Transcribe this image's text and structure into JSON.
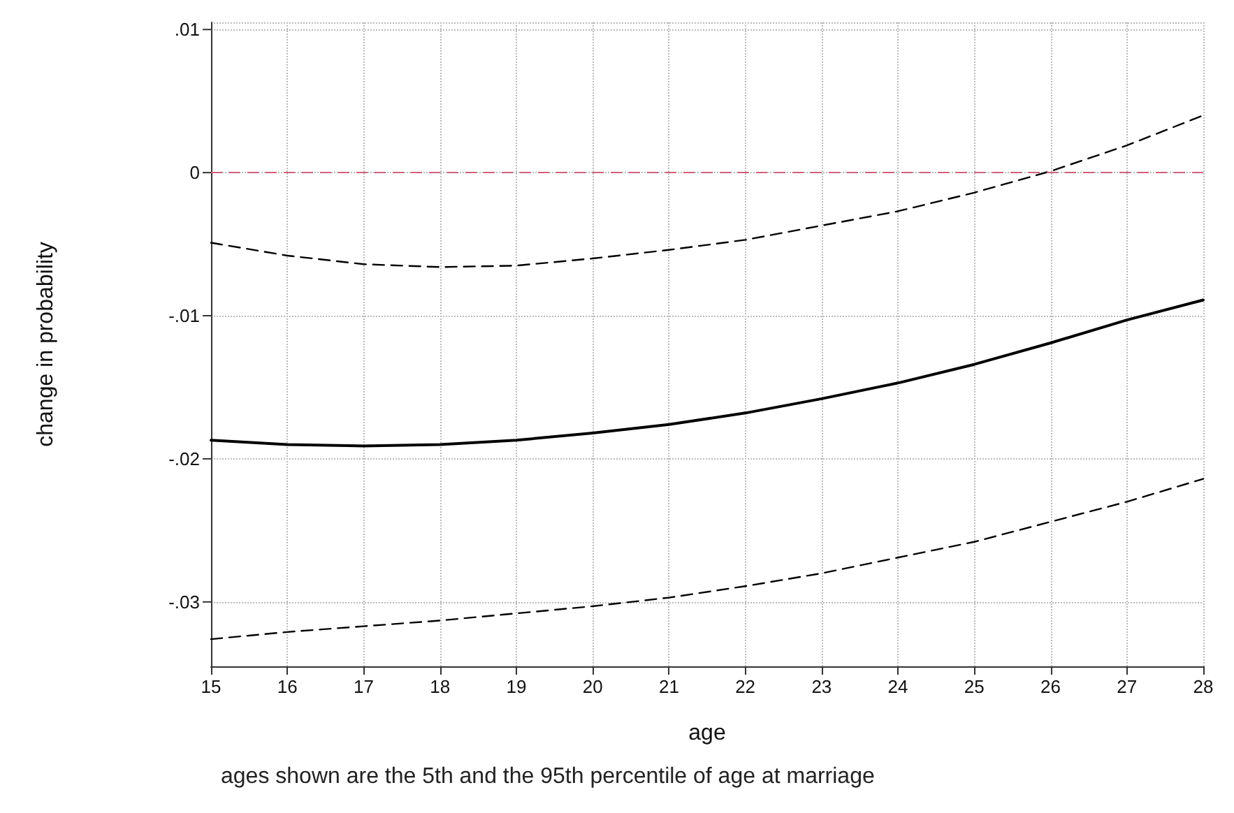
{
  "chart_data": {
    "type": "line",
    "xlabel": "age",
    "ylabel": "change in probability",
    "annotations": [
      "ages shown are the 5th and the 95th percentile of age at marriage"
    ],
    "x": [
      15,
      16,
      17,
      18,
      19,
      20,
      21,
      22,
      23,
      24,
      25,
      26,
      27,
      28
    ],
    "series": [
      {
        "color": "#000000",
        "line_style": "solid",
        "values": [
          -0.0187,
          -0.019,
          -0.0191,
          -0.019,
          -0.0187,
          -0.0182,
          -0.0176,
          -0.0168,
          -0.0158,
          -0.0147,
          -0.0134,
          -0.0119,
          -0.0103,
          -0.0089
        ]
      },
      {
        "color": "#000000",
        "line_style": "dashed",
        "values": [
          -0.0049,
          -0.0058,
          -0.0064,
          -0.0066,
          -0.0065,
          -0.006,
          -0.0054,
          -0.0047,
          -0.0037,
          -0.0027,
          -0.0014,
          0.0001,
          0.0019,
          0.004
        ]
      },
      {
        "color": "#000000",
        "line_style": "dashed",
        "values": [
          -0.0326,
          -0.0321,
          -0.0317,
          -0.0313,
          -0.0308,
          -0.0303,
          -0.0297,
          -0.0289,
          -0.028,
          -0.0269,
          -0.0258,
          -0.0244,
          -0.023,
          -0.0214
        ]
      }
    ],
    "xlim": [
      15,
      28
    ],
    "xticks": [
      15,
      16,
      17,
      18,
      19,
      20,
      21,
      22,
      23,
      24,
      25,
      26,
      27,
      28
    ],
    "ylim": [
      -0.0345,
      0.0105
    ],
    "yticks": [
      {
        "value": -0.03,
        "label": "-.03"
      },
      {
        "value": -0.02,
        "label": "-.02"
      },
      {
        "value": -0.01,
        "label": "-.01"
      },
      0,
      {
        "value": 0.01,
        "label": ".01"
      }
    ],
    "ref_lines": [
      {
        "axis": "y",
        "value": 0,
        "color": "#d0607a",
        "line_style": "dashed"
      }
    ],
    "grid": true,
    "marker": "none"
  }
}
